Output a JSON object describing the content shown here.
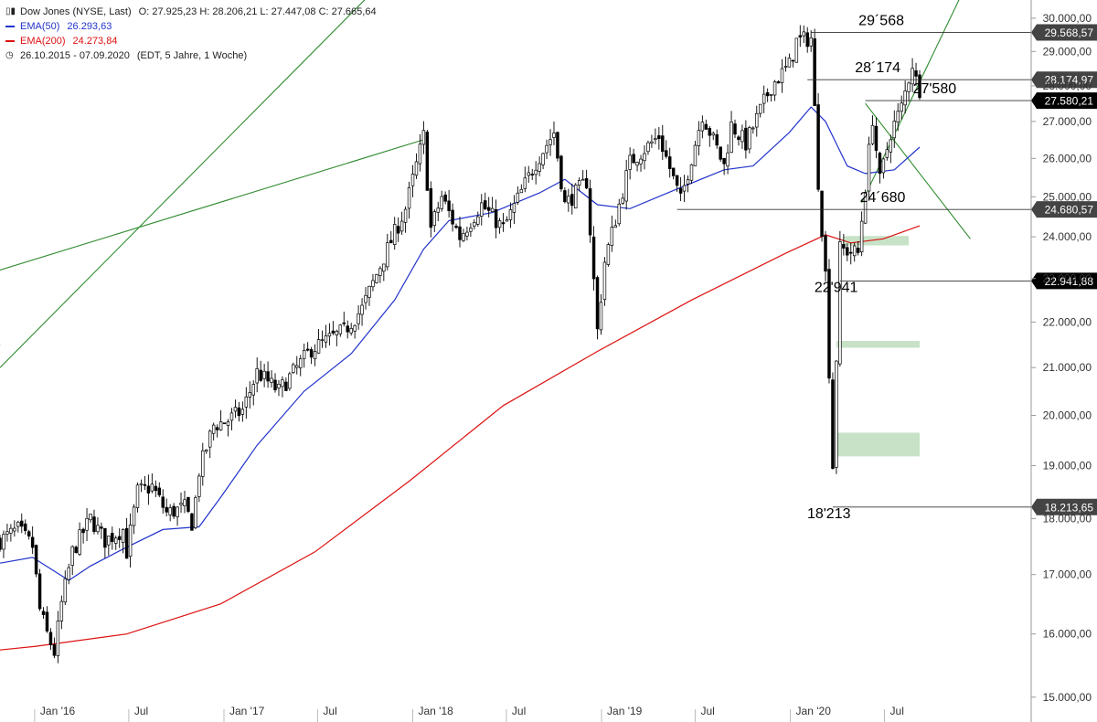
{
  "legend": {
    "title": "Dow Jones (NYSE, Last)",
    "ohlc": "O: 27.925,23  H: 28.206,21  L: 27.447,08  C: 27.665,64",
    "ema50_label": "EMA(50)",
    "ema50_value": "26.293,63",
    "ema50_color": "#2233cc",
    "ema200_label": "EMA(200)",
    "ema200_value": "24.273,84",
    "ema200_color": "#dd1111",
    "range": "26.10.2015 - 07.09.2020",
    "range_note": "(EDT, 5 Jahre, 1 Woche)"
  },
  "chart_data": {
    "type": "candlestick",
    "y_axis": {
      "scale": "log",
      "range": [
        14900,
        30450
      ],
      "position": "right",
      "ticks": [
        15000,
        16000,
        17000,
        18000,
        19000,
        20000,
        21000,
        22000,
        23000,
        24000,
        25000,
        26000,
        27000,
        28000,
        29000,
        30000
      ],
      "tick_labels": [
        "15.000,00",
        "16.000,00",
        "17.000,00",
        "18.000,00",
        "19.000,00",
        "20.000,00",
        "21.000,00",
        "22.000,00",
        "23.000,00",
        "24.000,00",
        "25.000,00",
        "26.000,00",
        "27.000,00",
        "28.000,00",
        "29.000,00",
        "30.000,00"
      ]
    },
    "x_axis": {
      "range": [
        "2015-10-26",
        "2020-09-07"
      ],
      "ticks": [
        "2016-01-01",
        "2016-07-01",
        "2017-01-01",
        "2017-07-01",
        "2018-01-01",
        "2018-07-01",
        "2019-01-01",
        "2019-07-01",
        "2020-01-01",
        "2020-07-01"
      ],
      "tick_labels": [
        "Jan '16",
        "Jul",
        "Jan '17",
        "Jul",
        "Jan '18",
        "Jul",
        "Jan '19",
        "Jul",
        "Jan '20",
        "Jul"
      ]
    },
    "price_path": [
      [
        "2015-10-26",
        17600
      ],
      [
        "2015-11-30",
        17800
      ],
      [
        "2015-12-28",
        17500
      ],
      [
        "2016-01-11",
        16400
      ],
      [
        "2016-01-25",
        16000
      ],
      [
        "2016-02-08",
        15700
      ],
      [
        "2016-02-22",
        16500
      ],
      [
        "2016-03-14",
        17400
      ],
      [
        "2016-04-18",
        18000
      ],
      [
        "2016-05-16",
        17600
      ],
      [
        "2016-06-20",
        17800
      ],
      [
        "2016-06-27",
        17400
      ],
      [
        "2016-07-18",
        18500
      ],
      [
        "2016-08-15",
        18600
      ],
      [
        "2016-09-12",
        18100
      ],
      [
        "2016-10-17",
        18200
      ],
      [
        "2016-11-01",
        17900
      ],
      [
        "2016-11-14",
        18900
      ],
      [
        "2016-12-12",
        19800
      ],
      [
        "2017-01-09",
        19900
      ],
      [
        "2017-02-06",
        20100
      ],
      [
        "2017-03-06",
        20900
      ],
      [
        "2017-04-17",
        20500
      ],
      [
        "2017-06-19",
        21400
      ],
      [
        "2017-08-21",
        21800
      ],
      [
        "2017-09-25",
        22300
      ],
      [
        "2017-11-06",
        23500
      ],
      [
        "2017-12-18",
        24700
      ],
      [
        "2018-01-22",
        26600
      ],
      [
        "2018-02-05",
        24200
      ],
      [
        "2018-02-26",
        25000
      ],
      [
        "2018-04-02",
        24000
      ],
      [
        "2018-05-14",
        24800
      ],
      [
        "2018-06-25",
        24200
      ],
      [
        "2018-08-27",
        25900
      ],
      [
        "2018-10-01",
        26700
      ],
      [
        "2018-10-22",
        24800
      ],
      [
        "2018-12-03",
        25400
      ],
      [
        "2018-12-24",
        21800
      ],
      [
        "2019-01-07",
        23400
      ],
      [
        "2019-02-25",
        25900
      ],
      [
        "2019-04-22",
        26600
      ],
      [
        "2019-06-03",
        24900
      ],
      [
        "2019-07-15",
        27200
      ],
      [
        "2019-08-26",
        25800
      ],
      [
        "2019-09-09",
        26900
      ],
      [
        "2019-10-07",
        26400
      ],
      [
        "2019-11-25",
        28000
      ],
      [
        "2019-12-30",
        28600
      ],
      [
        "2020-01-13",
        29300
      ],
      [
        "2020-02-10",
        29400
      ],
      [
        "2020-02-24",
        25400
      ],
      [
        "2020-03-09",
        23100
      ],
      [
        "2020-03-23",
        19000
      ],
      [
        "2020-04-06",
        23700
      ],
      [
        "2020-05-11",
        23600
      ],
      [
        "2020-06-08",
        27100
      ],
      [
        "2020-06-22",
        25400
      ],
      [
        "2020-07-13",
        26700
      ],
      [
        "2020-08-03",
        27400
      ],
      [
        "2020-08-24",
        28650
      ],
      [
        "2020-09-07",
        27665
      ]
    ],
    "series": [
      {
        "name": "EMA(50)",
        "color": "#2233cc",
        "points": [
          [
            "2015-10-26",
            17200
          ],
          [
            "2015-12-28",
            17300
          ],
          [
            "2016-02-01",
            17100
          ],
          [
            "2016-03-07",
            16900
          ],
          [
            "2016-04-18",
            17150
          ],
          [
            "2016-06-20",
            17450
          ],
          [
            "2016-09-05",
            17800
          ],
          [
            "2016-11-14",
            17850
          ],
          [
            "2016-12-26",
            18400
          ],
          [
            "2017-03-06",
            19400
          ],
          [
            "2017-06-05",
            20500
          ],
          [
            "2017-09-04",
            21300
          ],
          [
            "2017-11-27",
            22500
          ],
          [
            "2018-01-22",
            23700
          ],
          [
            "2018-03-12",
            24400
          ],
          [
            "2018-06-04",
            24600
          ],
          [
            "2018-09-03",
            25100
          ],
          [
            "2018-10-22",
            25450
          ],
          [
            "2018-12-24",
            24800
          ],
          [
            "2019-02-25",
            24700
          ],
          [
            "2019-05-27",
            25200
          ],
          [
            "2019-08-26",
            25700
          ],
          [
            "2019-10-21",
            25800
          ],
          [
            "2019-12-30",
            26700
          ],
          [
            "2020-02-10",
            27400
          ],
          [
            "2020-03-09",
            27000
          ],
          [
            "2020-04-20",
            25800
          ],
          [
            "2020-05-25",
            25600
          ],
          [
            "2020-07-20",
            25700
          ],
          [
            "2020-09-07",
            26300
          ]
        ]
      },
      {
        "name": "EMA(200)",
        "color": "#dd1111",
        "points": [
          [
            "2015-10-26",
            15740
          ],
          [
            "2016-01-04",
            15800
          ],
          [
            "2016-06-27",
            16000
          ],
          [
            "2016-12-26",
            16500
          ],
          [
            "2017-06-26",
            17400
          ],
          [
            "2017-12-25",
            18700
          ],
          [
            "2018-06-25",
            20200
          ],
          [
            "2018-12-24",
            21350
          ],
          [
            "2019-06-24",
            22500
          ],
          [
            "2019-12-23",
            23600
          ],
          [
            "2020-03-09",
            24050
          ],
          [
            "2020-04-27",
            23850
          ],
          [
            "2020-06-29",
            23950
          ],
          [
            "2020-09-07",
            24270
          ]
        ]
      }
    ],
    "trend_lines": [
      {
        "from": [
          "2015-10-26",
          23200
        ],
        "to": [
          "2018-01-22",
          26500
        ],
        "color": "#2e8b2e"
      },
      {
        "from": [
          "2015-10-26",
          21000
        ],
        "to": [
          "2017-10-02",
          30600
        ],
        "color": "#2e8b2e"
      },
      {
        "from": [
          "2014-08-04",
          15000
        ],
        "to": [
          "2015-10-26",
          21500
        ],
        "color": "#2e8b2e"
      },
      {
        "from": [
          "2020-05-18",
          24850
        ],
        "to": [
          "2020-11-23",
          30600
        ],
        "color": "#2e8b2e"
      },
      {
        "from": [
          "2020-05-25",
          27500
        ],
        "to": [
          "2020-12-14",
          23950
        ],
        "color": "#2e8b2e"
      }
    ],
    "levels": [
      {
        "value": 29568.57,
        "from": "2020-02-10",
        "label": "29´568",
        "tag": "29.568,57"
      },
      {
        "value": 28174.97,
        "from": "2020-02-03",
        "label": "28´174",
        "tag": "28.174,97"
      },
      {
        "value": 27580.21,
        "from": "2020-05-25",
        "label": "27'580",
        "tag": "27.580,21"
      },
      {
        "value": 24680.57,
        "from": "2019-05-27",
        "label": "24´680",
        "tag": "24.680,57"
      },
      {
        "value": 22941.88,
        "from": "2020-04-06",
        "label": "22'941",
        "tag": "22.941,88"
      },
      {
        "value": 18213.65,
        "from": "2020-03-23",
        "label": "18'213",
        "tag": "18.213,65"
      }
    ],
    "last_value_tag": {
      "value": 27665.64,
      "label": ""
    },
    "zones": [
      {
        "from": "2020-04-13",
        "to": "2020-08-17",
        "low": 23790,
        "high": 24020,
        "color": "#c7e2c7"
      },
      {
        "from": "2020-03-30",
        "to": "2020-09-07",
        "low": 21430,
        "high": 21580,
        "color": "#c7e2c7"
      },
      {
        "from": "2020-03-30",
        "to": "2020-09-07",
        "low": 19180,
        "high": 19650,
        "color": "#c7e2c7"
      }
    ]
  }
}
